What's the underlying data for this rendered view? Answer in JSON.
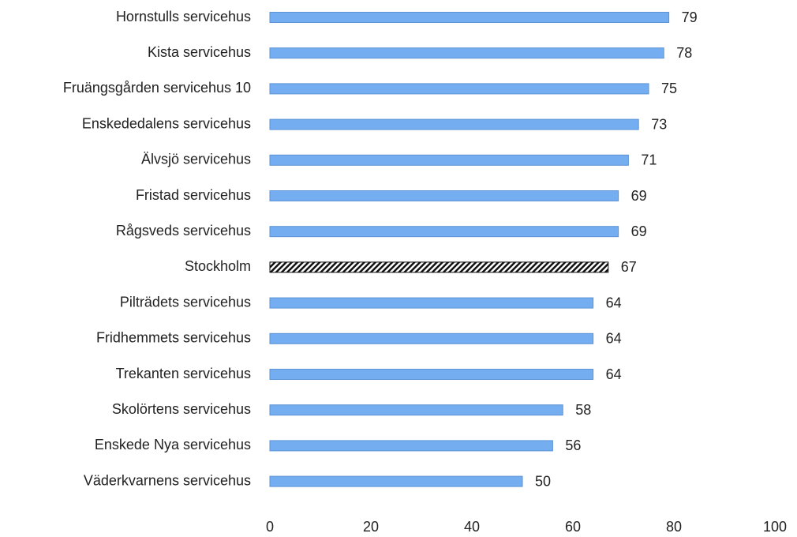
{
  "chart_data": {
    "type": "barh",
    "categories": [
      "Hornstulls servicehus",
      "Kista servicehus",
      "Fruängsgården servicehus 10",
      "Enskededalens servicehus",
      "Älvsjö servicehus",
      "Fristad servicehus",
      "Rågsveds servicehus",
      "Stockholm",
      "Pilträdets servicehus",
      "Fridhemmets servicehus",
      "Trekanten servicehus",
      "Skolörtens servicehus",
      "Enskede Nya servicehus",
      "Väderkvarnens servicehus"
    ],
    "values": [
      79,
      78,
      75,
      73,
      71,
      69,
      69,
      67,
      64,
      64,
      64,
      58,
      56,
      50
    ],
    "color": "#74aef0",
    "hatched": [
      false,
      false,
      false,
      false,
      false,
      false,
      false,
      true,
      false,
      false,
      false,
      false,
      false,
      false
    ],
    "xlim": [
      0,
      100
    ],
    "xticks": [
      0,
      20,
      40,
      60,
      80,
      100
    ],
    "grid": false
  }
}
